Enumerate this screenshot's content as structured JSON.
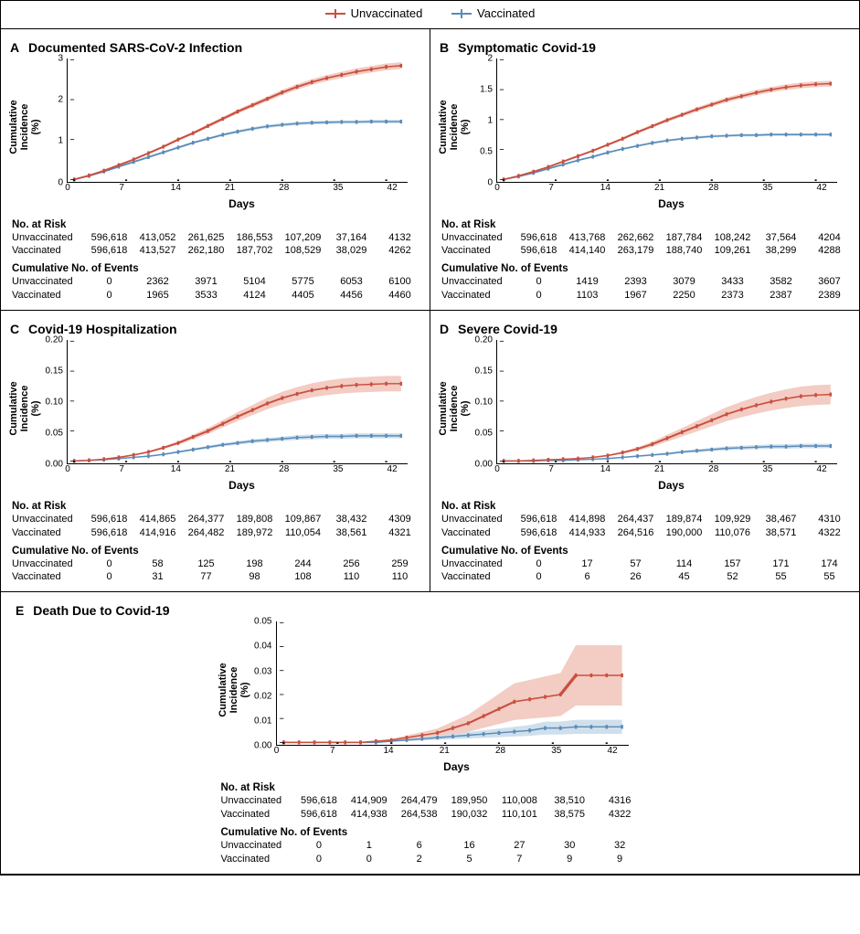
{
  "legend": {
    "unvaccinated": "Unvaccinated",
    "vaccinated": "Vaccinated"
  },
  "colors": {
    "unvac_line": "#c94f3f",
    "unvac_band": "#f2c7bd",
    "vac_line": "#5a8bb8",
    "vac_band": "#cadbea",
    "axis": "#000000",
    "background": "#ffffff"
  },
  "xaxis": {
    "label": "Days",
    "min": 0,
    "max": 44,
    "ticks": [
      0,
      7,
      14,
      21,
      28,
      35,
      42
    ]
  },
  "ylabel": "Cumulative Incidence (%)",
  "fonts": {
    "title_size_pt": 14,
    "axis_label_pt": 12,
    "tick_pt": 10,
    "table_pt": 11
  },
  "risk_section_titles": {
    "at_risk": "No. at Risk",
    "events": "Cumulative No. of Events"
  },
  "risk_row_labels": {
    "unvac": "Unvaccinated",
    "vac": "Vaccinated"
  },
  "panels": [
    {
      "letter": "A",
      "title": "Documented SARS-CoV-2 Infection",
      "ymax": 3.0,
      "yticks": [
        0,
        1,
        2,
        3
      ],
      "unvac": [
        0,
        0.1,
        0.22,
        0.36,
        0.5,
        0.66,
        0.82,
        1.0,
        1.16,
        1.34,
        1.52,
        1.7,
        1.86,
        2.02,
        2.18,
        2.32,
        2.44,
        2.54,
        2.62,
        2.7,
        2.76,
        2.82,
        2.85
      ],
      "vac": [
        0,
        0.09,
        0.2,
        0.32,
        0.44,
        0.56,
        0.68,
        0.8,
        0.92,
        1.02,
        1.12,
        1.2,
        1.27,
        1.33,
        1.37,
        1.4,
        1.42,
        1.43,
        1.44,
        1.44,
        1.45,
        1.45,
        1.45
      ],
      "ci_band_pct": 3.0,
      "at_risk": {
        "unvac": [
          "596,618",
          "413,052",
          "261,625",
          "186,553",
          "107,209",
          "37,164",
          "4132"
        ],
        "vac": [
          "596,618",
          "413,527",
          "262,180",
          "187,702",
          "108,529",
          "38,029",
          "4262"
        ]
      },
      "events": {
        "unvac": [
          "0",
          "2362",
          "3971",
          "5104",
          "5775",
          "6053",
          "6100"
        ],
        "vac": [
          "0",
          "1965",
          "3533",
          "4124",
          "4405",
          "4456",
          "4460"
        ]
      }
    },
    {
      "letter": "B",
      "title": "Symptomatic Covid-19",
      "ymax": 2.0,
      "yticks": [
        0,
        0.5,
        1.0,
        1.5,
        2.0
      ],
      "unvac": [
        0,
        0.06,
        0.13,
        0.21,
        0.3,
        0.39,
        0.48,
        0.58,
        0.68,
        0.79,
        0.89,
        0.99,
        1.08,
        1.17,
        1.25,
        1.33,
        1.39,
        1.45,
        1.5,
        1.54,
        1.57,
        1.59,
        1.6
      ],
      "vac": [
        0,
        0.05,
        0.11,
        0.18,
        0.25,
        0.32,
        0.38,
        0.45,
        0.51,
        0.56,
        0.61,
        0.65,
        0.68,
        0.7,
        0.72,
        0.73,
        0.74,
        0.74,
        0.75,
        0.75,
        0.75,
        0.75,
        0.75
      ],
      "ci_band_pct": 3.0,
      "at_risk": {
        "unvac": [
          "596,618",
          "413,768",
          "262,662",
          "187,784",
          "108,242",
          "37,564",
          "4204"
        ],
        "vac": [
          "596,618",
          "414,140",
          "263,179",
          "188,740",
          "109,261",
          "38,299",
          "4288"
        ]
      },
      "events": {
        "unvac": [
          "0",
          "1419",
          "2393",
          "3079",
          "3433",
          "3582",
          "3607"
        ],
        "vac": [
          "0",
          "1103",
          "1967",
          "2250",
          "2373",
          "2387",
          "2389"
        ]
      }
    },
    {
      "letter": "C",
      "title": "Covid-19 Hospitalization",
      "ymax": 0.2,
      "yticks": [
        0,
        0.05,
        0.1,
        0.15,
        0.2
      ],
      "unvac": [
        0,
        0.001,
        0.003,
        0.006,
        0.01,
        0.015,
        0.022,
        0.03,
        0.04,
        0.05,
        0.062,
        0.074,
        0.085,
        0.096,
        0.105,
        0.112,
        0.118,
        0.122,
        0.125,
        0.127,
        0.128,
        0.129,
        0.129
      ],
      "vac": [
        0,
        0.001,
        0.002,
        0.004,
        0.006,
        0.008,
        0.011,
        0.015,
        0.019,
        0.023,
        0.027,
        0.03,
        0.033,
        0.035,
        0.037,
        0.039,
        0.04,
        0.041,
        0.041,
        0.042,
        0.042,
        0.042,
        0.042
      ],
      "ci_band_pct": 10.0,
      "at_risk": {
        "unvac": [
          "596,618",
          "414,865",
          "264,377",
          "189,808",
          "109,867",
          "38,432",
          "4309"
        ],
        "vac": [
          "596,618",
          "414,916",
          "264,482",
          "189,972",
          "110,054",
          "38,561",
          "4321"
        ]
      },
      "events": {
        "unvac": [
          "0",
          "58",
          "125",
          "198",
          "244",
          "256",
          "259"
        ],
        "vac": [
          "0",
          "31",
          "77",
          "98",
          "108",
          "110",
          "110"
        ]
      }
    },
    {
      "letter": "D",
      "title": "Severe Covid-19",
      "ymax": 0.2,
      "yticks": [
        0,
        0.05,
        0.1,
        0.15,
        0.2
      ],
      "unvac": [
        0,
        0.0,
        0.001,
        0.002,
        0.003,
        0.004,
        0.006,
        0.009,
        0.014,
        0.02,
        0.028,
        0.038,
        0.048,
        0.058,
        0.068,
        0.078,
        0.086,
        0.093,
        0.099,
        0.104,
        0.108,
        0.11,
        0.111
      ],
      "vac": [
        0,
        0.0,
        0.0,
        0.001,
        0.001,
        0.002,
        0.003,
        0.004,
        0.006,
        0.008,
        0.01,
        0.012,
        0.015,
        0.017,
        0.019,
        0.021,
        0.022,
        0.023,
        0.024,
        0.024,
        0.025,
        0.025,
        0.025
      ],
      "ci_band_pct": 15.0,
      "at_risk": {
        "unvac": [
          "596,618",
          "414,898",
          "264,437",
          "189,874",
          "109,929",
          "38,467",
          "4310"
        ],
        "vac": [
          "596,618",
          "414,933",
          "264,516",
          "190,000",
          "110,076",
          "38,571",
          "4322"
        ]
      },
      "events": {
        "unvac": [
          "0",
          "17",
          "57",
          "114",
          "157",
          "171",
          "174"
        ],
        "vac": [
          "0",
          "6",
          "26",
          "45",
          "52",
          "55",
          "55"
        ]
      }
    },
    {
      "letter": "E",
      "title": "Death Due to Covid-19",
      "ymax": 0.05,
      "yticks": [
        0,
        0.01,
        0.02,
        0.03,
        0.04,
        0.05
      ],
      "unvac": [
        0,
        0,
        0,
        0,
        0,
        0,
        0.0005,
        0.001,
        0.002,
        0.003,
        0.004,
        0.006,
        0.008,
        0.011,
        0.014,
        0.017,
        0.018,
        0.019,
        0.02,
        0.028,
        0.028,
        0.028,
        0.028
      ],
      "vac": [
        0,
        0,
        0,
        0,
        0,
        0,
        0,
        0.0005,
        0.001,
        0.0015,
        0.002,
        0.0025,
        0.003,
        0.0035,
        0.004,
        0.0045,
        0.005,
        0.006,
        0.006,
        0.0065,
        0.0065,
        0.0065,
        0.0065
      ],
      "ci_band_pct": 45.0,
      "at_risk": {
        "unvac": [
          "596,618",
          "414,909",
          "264,479",
          "189,950",
          "110,008",
          "38,510",
          "4316"
        ],
        "vac": [
          "596,618",
          "414,938",
          "264,538",
          "190,032",
          "110,101",
          "38,575",
          "4322"
        ]
      },
      "events": {
        "unvac": [
          "0",
          "1",
          "6",
          "16",
          "27",
          "30",
          "32"
        ],
        "vac": [
          "0",
          "0",
          "2",
          "5",
          "7",
          "9",
          "9"
        ]
      }
    }
  ]
}
